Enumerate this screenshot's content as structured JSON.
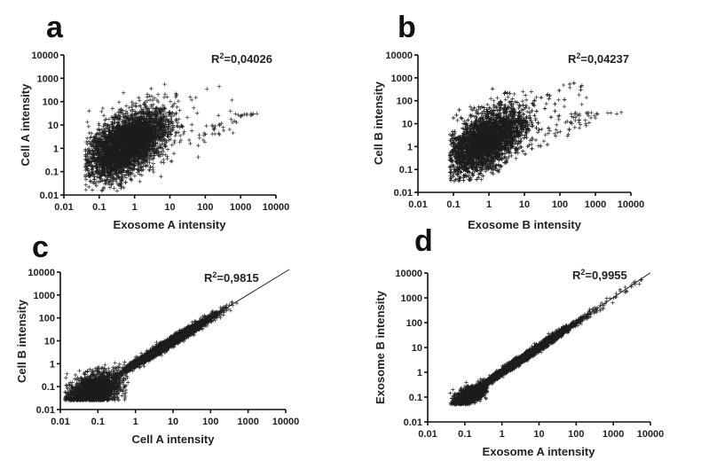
{
  "chart_data": [
    {
      "panel": "a",
      "type": "scatter",
      "xlabel": "Exosome A intensity",
      "ylabel": "Cell A intensity",
      "annotation": {
        "r2_prefix": "R",
        "r2_sup": "2",
        "r2_value": "=0,04026"
      },
      "xscale": "log",
      "yscale": "log",
      "xlim": [
        0.01,
        10000
      ],
      "ylim": [
        0.01,
        10000
      ],
      "xticks": [
        "0.01",
        "0.1",
        "1",
        "10",
        "100",
        "1000",
        "10000"
      ],
      "yticks": [
        "0.01",
        "0.1",
        "1",
        "10",
        "100",
        "1000",
        "10000"
      ],
      "regression_line": false,
      "clusters_log10": [
        {
          "n": 4000,
          "x_mean": -0.2,
          "x_sd": 0.55,
          "x_min": -1.4,
          "x_max": 2.8,
          "slope": 0.65,
          "intercept": 0.3,
          "y_sd": 0.6,
          "y_floor": -1.85,
          "y_max": 2.8
        },
        {
          "n": 45,
          "x_mean": 2.6,
          "x_sd": 0.5,
          "x_min": 1.5,
          "x_max": 3.8,
          "slope": 0.75,
          "intercept": -0.9,
          "y_sd": 0.25,
          "y_floor": -1.0,
          "y_max": 1.5
        }
      ]
    },
    {
      "panel": "b",
      "type": "scatter",
      "xlabel": "Exosome B intensity",
      "ylabel": "Cell B intensity",
      "annotation": {
        "r2_prefix": "R",
        "r2_sup": "2",
        "r2_value": "=0,04237"
      },
      "xscale": "log",
      "yscale": "log",
      "xlim": [
        0.01,
        10000
      ],
      "ylim": [
        0.01,
        10000
      ],
      "xticks": [
        "0.01",
        "0.1",
        "1",
        "10",
        "100",
        "1000",
        "10000"
      ],
      "yticks": [
        "0.01",
        "0.1",
        "1",
        "10",
        "100",
        "1000",
        "10000"
      ],
      "regression_line": false,
      "clusters_log10": [
        {
          "n": 4000,
          "x_mean": -0.1,
          "x_sd": 0.55,
          "x_min": -1.1,
          "x_max": 2.8,
          "slope": 0.7,
          "intercept": 0.3,
          "y_sd": 0.6,
          "y_floor": -1.5,
          "y_max": 2.8
        },
        {
          "n": 45,
          "x_mean": 2.6,
          "x_sd": 0.5,
          "x_min": 1.5,
          "x_max": 3.8,
          "slope": 0.75,
          "intercept": -0.8,
          "y_sd": 0.25,
          "y_floor": -1.0,
          "y_max": 1.5
        }
      ]
    },
    {
      "panel": "c",
      "type": "scatter",
      "xlabel": "Cell A intensity",
      "ylabel": "Cell B intensity",
      "annotation": {
        "r2_prefix": "R",
        "r2_sup": "2",
        "r2_value": "=0,9815"
      },
      "xscale": "log",
      "yscale": "log",
      "xlim": [
        0.01,
        10000
      ],
      "ylim": [
        0.01,
        10000
      ],
      "xticks": [
        "0.01",
        "0.1",
        "1",
        "10",
        "100",
        "1000",
        "10000"
      ],
      "yticks": [
        "0.01",
        "0.1",
        "1",
        "10",
        "100",
        "1000",
        "10000"
      ],
      "regression_line": true,
      "regression_log10": {
        "slope": 1.0,
        "intercept": 0.0,
        "x_from": -0.5,
        "x_to": 4.0
      },
      "clusters_log10": [
        {
          "n": 2500,
          "x_mean": 0.9,
          "x_sd": 0.6,
          "x_min": -0.6,
          "x_max": 2.75,
          "slope": 1.0,
          "intercept": 0.0,
          "y_sd": 0.1,
          "y_floor": -1.6,
          "y_max": 2.8
        },
        {
          "n": 1800,
          "x_mean": -1.1,
          "x_sd": 0.35,
          "x_min": -1.9,
          "x_max": -0.2,
          "slope": 0.4,
          "intercept": -0.7,
          "y_sd": 0.35,
          "y_floor": -1.6,
          "y_max": 0.6
        }
      ]
    },
    {
      "panel": "d",
      "type": "scatter",
      "xlabel": "Exosome A intensity",
      "ylabel": "Exosome B intensity",
      "annotation": {
        "r2_prefix": "R",
        "r2_sup": "2",
        "r2_value": "=0,9955"
      },
      "xscale": "log",
      "yscale": "log",
      "xlim": [
        0.01,
        10000
      ],
      "ylim": [
        0.01,
        10000
      ],
      "xticks": [
        "0.01",
        "0.1",
        "1",
        "10",
        "100",
        "1000",
        "10000"
      ],
      "yticks": [
        "0.01",
        "0.1",
        "1",
        "10",
        "100",
        "1000",
        "10000"
      ],
      "regression_line": true,
      "regression_log10": {
        "slope": 1.0,
        "intercept": 0.0,
        "x_from": 0.0,
        "x_to": 3.9
      },
      "clusters_log10": [
        {
          "n": 2500,
          "x_mean": 0.6,
          "x_sd": 0.75,
          "x_min": -0.8,
          "x_max": 3.8,
          "slope": 1.0,
          "intercept": 0.0,
          "y_sd": 0.08,
          "y_floor": -1.3,
          "y_max": 3.8
        },
        {
          "n": 1500,
          "x_mean": -0.85,
          "x_sd": 0.2,
          "x_min": -1.4,
          "x_max": -0.4,
          "slope": 0.55,
          "intercept": -0.45,
          "y_sd": 0.15,
          "y_floor": -1.3,
          "y_max": 0.2
        }
      ]
    }
  ]
}
